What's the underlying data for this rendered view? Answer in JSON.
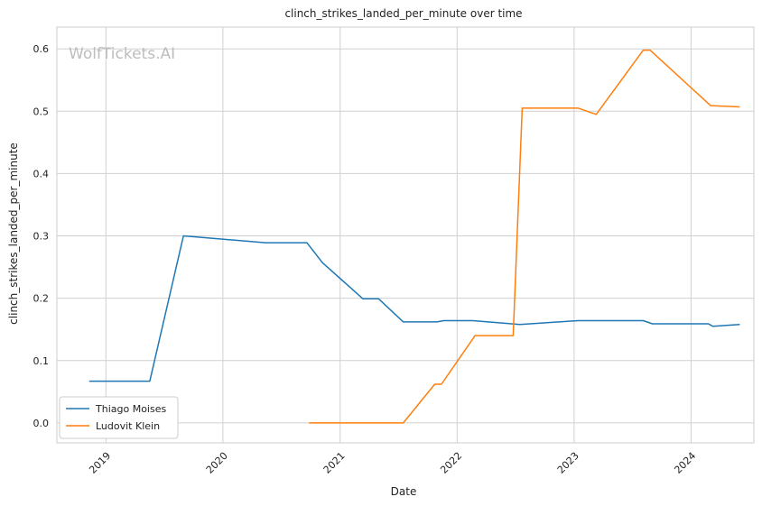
{
  "chart_data": {
    "type": "line",
    "title": "clinch_strikes_landed_per_minute over time",
    "xlabel": "Date",
    "ylabel": "clinch_strikes_landed_per_minute",
    "watermark": "WolfTickets.AI",
    "x_ticks": [
      "2019",
      "2020",
      "2021",
      "2022",
      "2023",
      "2024"
    ],
    "y_ticks": [
      "0.0",
      "0.1",
      "0.2",
      "0.3",
      "0.4",
      "0.5",
      "0.6"
    ],
    "xlim": [
      "2018-08-01",
      "2024-07-15"
    ],
    "ylim": [
      -0.032,
      0.635
    ],
    "grid": true,
    "legend_position": "lower-left",
    "series": [
      {
        "name": "Thiago Moises",
        "color": "#1f77b4",
        "points": [
          [
            "2018-11-10",
            0.067
          ],
          [
            "2019-05-18",
            0.067
          ],
          [
            "2019-08-31",
            0.3
          ],
          [
            "2020-05-13",
            0.289
          ],
          [
            "2020-09-19",
            0.289
          ],
          [
            "2020-11-07",
            0.257
          ],
          [
            "2021-03-13",
            0.199
          ],
          [
            "2021-05-01",
            0.199
          ],
          [
            "2021-07-17",
            0.162
          ],
          [
            "2021-10-30",
            0.162
          ],
          [
            "2021-11-20",
            0.164
          ],
          [
            "2022-02-19",
            0.164
          ],
          [
            "2022-07-16",
            0.158
          ],
          [
            "2023-01-14",
            0.164
          ],
          [
            "2023-08-05",
            0.164
          ],
          [
            "2023-09-02",
            0.159
          ],
          [
            "2024-02-24",
            0.159
          ],
          [
            "2024-03-09",
            0.155
          ],
          [
            "2024-06-01",
            0.158
          ]
        ]
      },
      {
        "name": "Ludovit Klein",
        "color": "#ff7f0e",
        "points": [
          [
            "2020-09-26",
            0.0
          ],
          [
            "2021-07-17",
            0.0
          ],
          [
            "2021-10-23",
            0.062
          ],
          [
            "2021-11-13",
            0.062
          ],
          [
            "2022-02-26",
            0.14
          ],
          [
            "2022-06-25",
            0.14
          ],
          [
            "2022-07-23",
            0.505
          ],
          [
            "2023-01-14",
            0.505
          ],
          [
            "2023-03-11",
            0.495
          ],
          [
            "2023-08-05",
            0.598
          ],
          [
            "2023-08-26",
            0.598
          ],
          [
            "2024-03-02",
            0.509
          ],
          [
            "2024-06-01",
            0.507
          ]
        ]
      }
    ]
  }
}
